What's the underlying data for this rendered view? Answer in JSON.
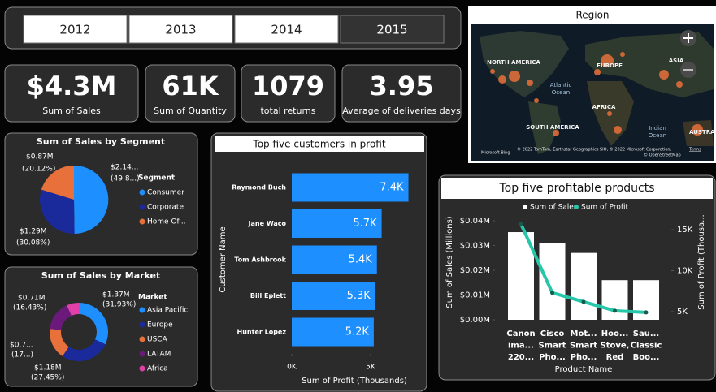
{
  "slicer": {
    "items": [
      "2012",
      "2013",
      "2014",
      "2015"
    ],
    "selected": 3
  },
  "kpis": [
    {
      "value": "$4.3M",
      "label": "Sum of Sales"
    },
    {
      "value": "61K",
      "label": "Sum of Quantity"
    },
    {
      "value": "1079",
      "label": "total returns"
    },
    {
      "value": "3.95",
      "label": "Average of deliveries days"
    }
  ],
  "map": {
    "title": "Region",
    "labels": [
      "NORTH AMERICA",
      "EUROPE",
      "ASIA",
      "Atlantic",
      "Ocean",
      "AFRICA",
      "SOUTH AMERICA",
      "Indian",
      "Ocean",
      "AUSTRAL"
    ],
    "brand": "Microsoft Bing",
    "attribution": "© 2022 TomTom, Earthstar Geographics SIO, © 2022 Microsoft Corporation,",
    "terms": "Terms",
    "osm": "© OpenStreetMap"
  },
  "chart_data": [
    {
      "type": "pie",
      "title": "Sum of Sales by Segment",
      "legend_title": "Segment",
      "categories": [
        "Consumer",
        "Corporate",
        "Home Of..."
      ],
      "values": [
        2.14,
        1.29,
        0.87
      ],
      "value_labels": [
        "$2.14...",
        "$1.29M",
        "$0.87M"
      ],
      "share_labels": [
        "(49.8...)",
        "(30.08%)",
        "(20.12%)"
      ],
      "colors": [
        "#1e8fff",
        "#1b2a9a",
        "#e8703a"
      ]
    },
    {
      "type": "donut",
      "title": "Sum of Sales by Market",
      "legend_title": "Market",
      "categories": [
        "Asia Pacific",
        "Europe",
        "USCA",
        "LATAM",
        "Africa"
      ],
      "values": [
        1.37,
        1.18,
        0.74,
        0.71,
        0.29
      ],
      "value_labels": [
        "$1.37M",
        "$1.18M",
        "$0.7...",
        "$0.71M",
        null
      ],
      "share_labels": [
        "(31.93%)",
        "(27.45%)",
        "(17...)",
        "(16.43%)",
        null
      ],
      "colors": [
        "#1e8fff",
        "#1b2a9a",
        "#e8703a",
        "#6b1a7c",
        "#e040a8"
      ]
    },
    {
      "type": "bar",
      "orientation": "horizontal",
      "title": "Top five customers in profit",
      "categories": [
        "Raymond Buch",
        "Jane Waco",
        "Tom Ashbrook",
        "Bill Eplett",
        "Hunter Lopez"
      ],
      "values": [
        7.4,
        5.7,
        5.4,
        5.3,
        5.2
      ],
      "value_labels": [
        "7.4K",
        "5.7K",
        "5.4K",
        "5.3K",
        "5.2K"
      ],
      "color": "#1e8fff",
      "xlim": [
        0,
        8
      ],
      "xticks": [
        {
          "value": 0,
          "label": "0K"
        },
        {
          "value": 5,
          "label": "5K"
        }
      ],
      "xlabel": "Sum of Profit (Thousands)",
      "ylabel": "Customer Name"
    },
    {
      "type": "combo",
      "title": "Top five profitable products",
      "categories": [
        [
          "Canon",
          "ima...",
          "220..."
        ],
        [
          "Cisco",
          "Smart",
          "Pho..."
        ],
        [
          "Mot...",
          "Smart",
          "Pho..."
        ],
        [
          "Hoo...",
          "Stove,",
          "Red"
        ],
        [
          "Sau...",
          "Classic",
          "Boo..."
        ]
      ],
      "series": [
        {
          "name": "Sum of Sales",
          "type": "bar",
          "color": "#ffffff",
          "values": [
            0.0354,
            0.031,
            0.027,
            0.016,
            0.016
          ]
        },
        {
          "name": "Sum of Profit",
          "type": "line",
          "axis": "y2",
          "color": "#26c6a9",
          "values": [
            15.7,
            7.3,
            6.2,
            5.1,
            4.9
          ]
        }
      ],
      "ylim": [
        0,
        0.04
      ],
      "yticks": [
        {
          "value": 0,
          "label": "$0.00M"
        },
        {
          "value": 0.01,
          "label": "$0.01M"
        },
        {
          "value": 0.02,
          "label": "$0.02M"
        },
        {
          "value": 0.03,
          "label": "$0.03M"
        },
        {
          "value": 0.04,
          "label": "$0.04M"
        }
      ],
      "y2lim": [
        4,
        16.1
      ],
      "y2ticks": [
        {
          "value": 5,
          "label": "5K"
        },
        {
          "value": 10,
          "label": "10K"
        },
        {
          "value": 15,
          "label": "15K"
        }
      ],
      "xlabel": "Product Name",
      "ylabel": "Sum of Sales (Millions)",
      "y2label": "Sum of Profit (Thousa..."
    }
  ]
}
